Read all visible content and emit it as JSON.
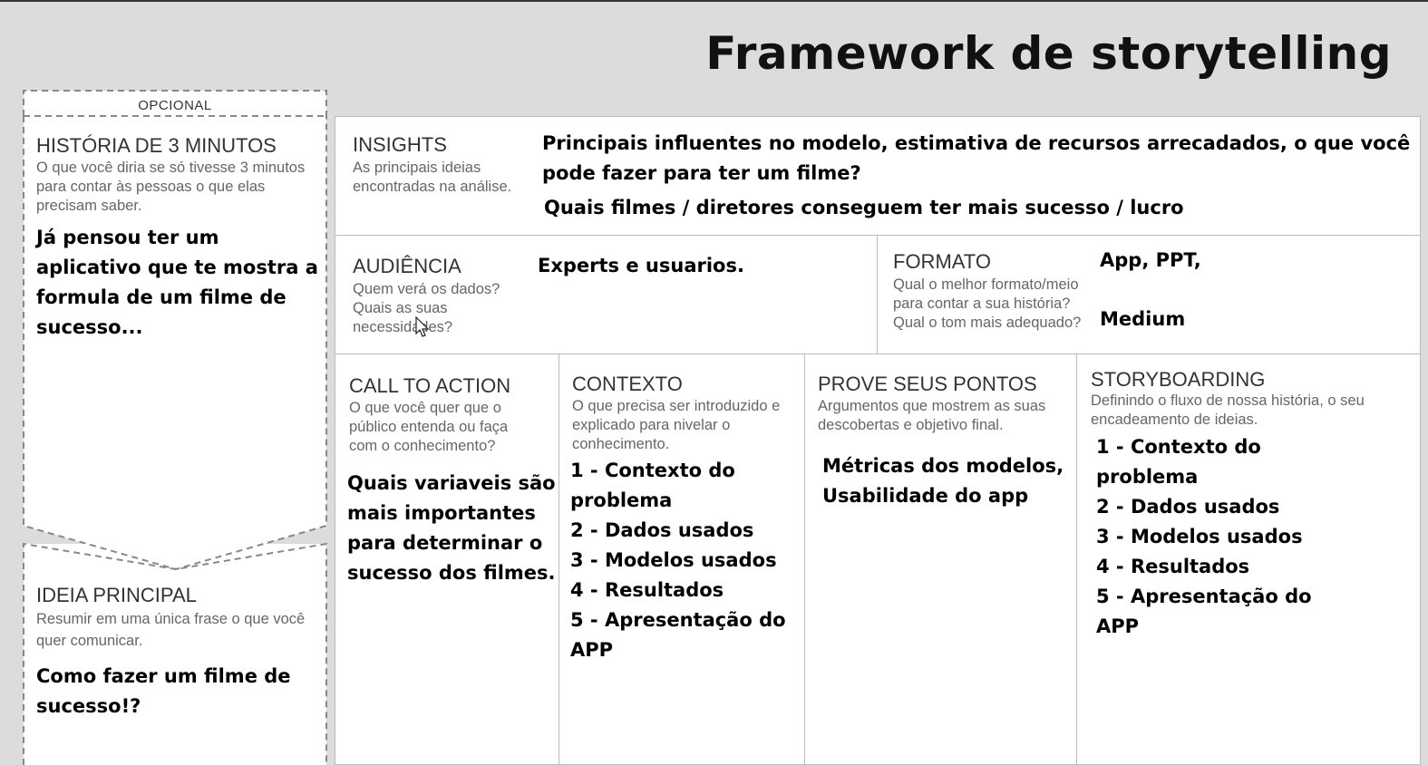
{
  "page": {
    "title": "Framework de storytelling"
  },
  "left": {
    "optional_label": "OPCIONAL",
    "historia": {
      "title": "HISTÓRIA DE 3 MINUTOS",
      "description": "O que você diria se só tivesse 3 minutos para contar às pessoas o que elas precisam saber.",
      "content": [
        "Já pensou ter um",
        "aplicativo que te mostra a",
        "formula de um filme de",
        "sucesso..."
      ]
    },
    "ideia": {
      "title": "IDEIA PRINCIPAL",
      "description": "Resumir em uma única frase o que você quer comunicar.",
      "content": [
        "Como fazer um filme de",
        "sucesso!?"
      ]
    }
  },
  "insights": {
    "title": "INSIGHTS",
    "description": "As principais ideias encontradas na análise.",
    "content": [
      "Principais influentes no modelo, estimativa de recursos arrecadados, o que você",
      "pode fazer para ter um filme?",
      "Quais filmes / diretores conseguem ter mais sucesso / lucro"
    ]
  },
  "audiencia": {
    "title": "AUDIÊNCIA",
    "description": "Quem verá os dados? Quais as suas necessidades?",
    "content": [
      "Experts e usuarios."
    ]
  },
  "formato": {
    "title": "FORMATO",
    "description": "Qual o melhor formato/meio para contar a sua história? Qual o tom mais adequado?",
    "content": [
      "App, PPT,",
      "Medium"
    ]
  },
  "call_to_action": {
    "title": "CALL TO ACTION",
    "description": "O que você quer que o público entenda ou faça com o conhecimento?",
    "content": [
      "Quais variaveis são",
      "mais importantes",
      "para determinar o",
      "sucesso dos filmes."
    ]
  },
  "contexto": {
    "title": "CONTEXTO",
    "description": "O que precisa ser introduzido e explicado  para nivelar o conhecimento.",
    "content": [
      "1 - Contexto do",
      "problema",
      "2 - Dados usados",
      "3 - Modelos usados",
      "4 - Resultados",
      "5 - Apresentação do",
      "APP"
    ]
  },
  "prove": {
    "title": "PROVE SEUS PONTOS",
    "description": "Argumentos que mostrem as suas descobertas e objetivo final.",
    "content": [
      "Métricas dos modelos,",
      "Usabilidade do app"
    ]
  },
  "storyboarding": {
    "title": "STORYBOARDING",
    "description": "Definindo o fluxo de nossa história, o seu encadeamento de ideias.",
    "content": [
      "1 - Contexto do",
      "problema",
      "2 - Dados usados",
      "3 - Modelos usados",
      "4 - Resultados",
      "5 - Apresentação do",
      "APP"
    ]
  },
  "colors": {
    "background": "#dcdcdd",
    "panel": "#ffffff",
    "border": "#bdbdbd",
    "dashed": "#888888"
  }
}
